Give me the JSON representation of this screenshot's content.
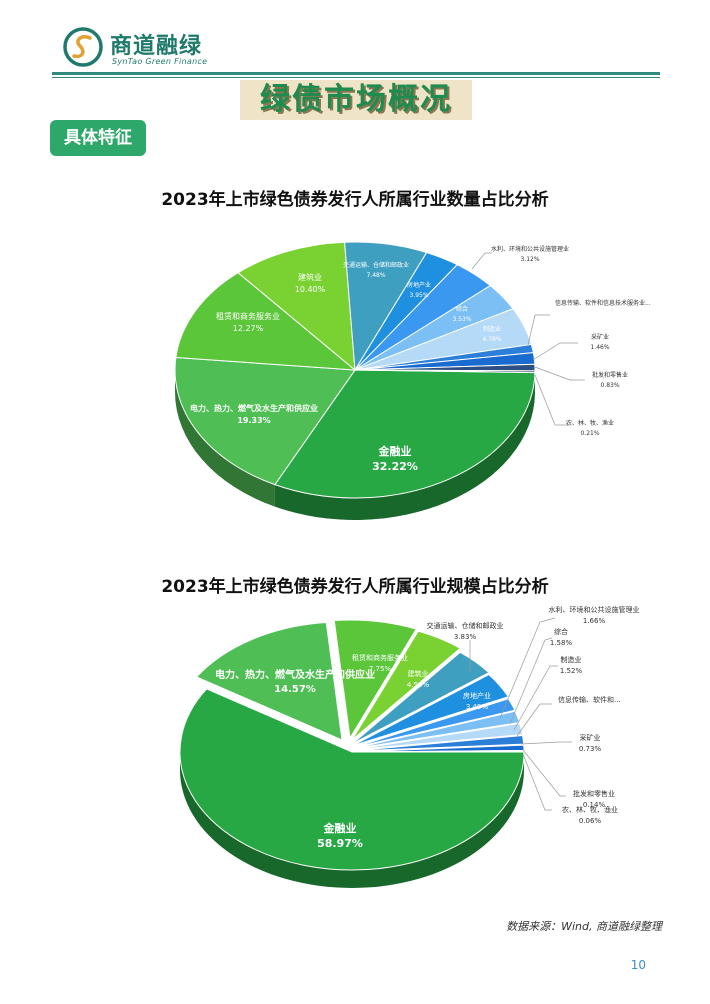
{
  "brand": {
    "name_cn": "商道融绿",
    "name_en": "SynTao Green Finance",
    "color": "#1f7a6b"
  },
  "banner": {
    "title": "绿债市场概况"
  },
  "section": {
    "tag": "具体特征"
  },
  "chart_data": [
    {
      "type": "pie",
      "title": "2023年上市绿色债券发行人所属行业数量占比分析",
      "slices": [
        {
          "label": "金融业",
          "value": 32.22,
          "pct": "32.22%",
          "color": "#27a845"
        },
        {
          "label": "电力、热力、燃气及水生产和供应业",
          "value": 19.33,
          "pct": "19.33%",
          "color": "#4fbf55"
        },
        {
          "label": "租赁和商务服务业",
          "value": 12.27,
          "pct": "12.27%",
          "color": "#5cc63a"
        },
        {
          "label": "建筑业",
          "value": 10.4,
          "pct": "10.40%",
          "color": "#79d132"
        },
        {
          "label": "交通运输、仓储和邮政业",
          "value": 7.48,
          "pct": "7.48%",
          "color": "#3f9fc0"
        },
        {
          "label": "水利、环境和公共设施管理业",
          "value": 3.12,
          "pct": "3.12%",
          "color": "#1f8fe0"
        },
        {
          "label": "房地产业",
          "value": 3.95,
          "pct": "3.95%",
          "color": "#3a98f0"
        },
        {
          "label": "综合",
          "value": 3.53,
          "pct": "3.53%",
          "color": "#7cbff4"
        },
        {
          "label": "制造业",
          "value": 4.78,
          "pct": "4.78%",
          "color": "#b4daf8"
        },
        {
          "label": "信息传输、软件和信息技术服务业...",
          "value": 1.04,
          "pct": "",
          "color": "#2c7fd8"
        },
        {
          "label": "采矿业",
          "value": 1.46,
          "pct": "1.46%",
          "color": "#1a6bd0"
        },
        {
          "label": "批发和零售业",
          "value": 0.83,
          "pct": "0.83%",
          "color": "#2d4f82"
        },
        {
          "label": "农、林、牧、渔业",
          "value": 0.21,
          "pct": "0.21%",
          "color": "#223a5c"
        }
      ]
    },
    {
      "type": "pie",
      "title": "2023年上市绿色债券发行人所属行业规模占比分析",
      "slices": [
        {
          "label": "金融业",
          "value": 58.97,
          "pct": "58.97%",
          "color": "#27a845"
        },
        {
          "label": "电力、热力、燃气及水生产和供应业",
          "value": 14.57,
          "pct": "14.57%",
          "color": "#4fbf55"
        },
        {
          "label": "租赁和商务服务业",
          "value": 7.75,
          "pct": "7.75%",
          "color": "#5cc63a"
        },
        {
          "label": "建筑业",
          "value": 4.54,
          "pct": "4.54%",
          "color": "#79d132"
        },
        {
          "label": "交通运输、仓储和邮政业",
          "value": 3.83,
          "pct": "3.83%",
          "color": "#3f9fc0"
        },
        {
          "label": "房地产业",
          "value": 3.49,
          "pct": "3.49%",
          "color": "#1f8fe0"
        },
        {
          "label": "水利、环境和公共设施管理业",
          "value": 1.66,
          "pct": "1.66%",
          "color": "#3a98f0"
        },
        {
          "label": "综合",
          "value": 1.58,
          "pct": "1.58%",
          "color": "#7cbff4"
        },
        {
          "label": "制造业",
          "value": 1.52,
          "pct": "1.52%",
          "color": "#b4daf8"
        },
        {
          "label": "信息传输、软件和...",
          "value": 1.16,
          "pct": "",
          "color": "#2c7fd8"
        },
        {
          "label": "采矿业",
          "value": 0.73,
          "pct": "0.73%",
          "color": "#1a6bd0"
        },
        {
          "label": "批发和零售业",
          "value": 0.14,
          "pct": "0.14%",
          "color": "#2d4f82"
        },
        {
          "label": "农、林、牧、渔业",
          "value": 0.06,
          "pct": "0.06%",
          "color": "#223a5c"
        }
      ]
    }
  ],
  "footer": {
    "source": "数据来源：Wind, 商道融绿整理",
    "page": "10"
  }
}
